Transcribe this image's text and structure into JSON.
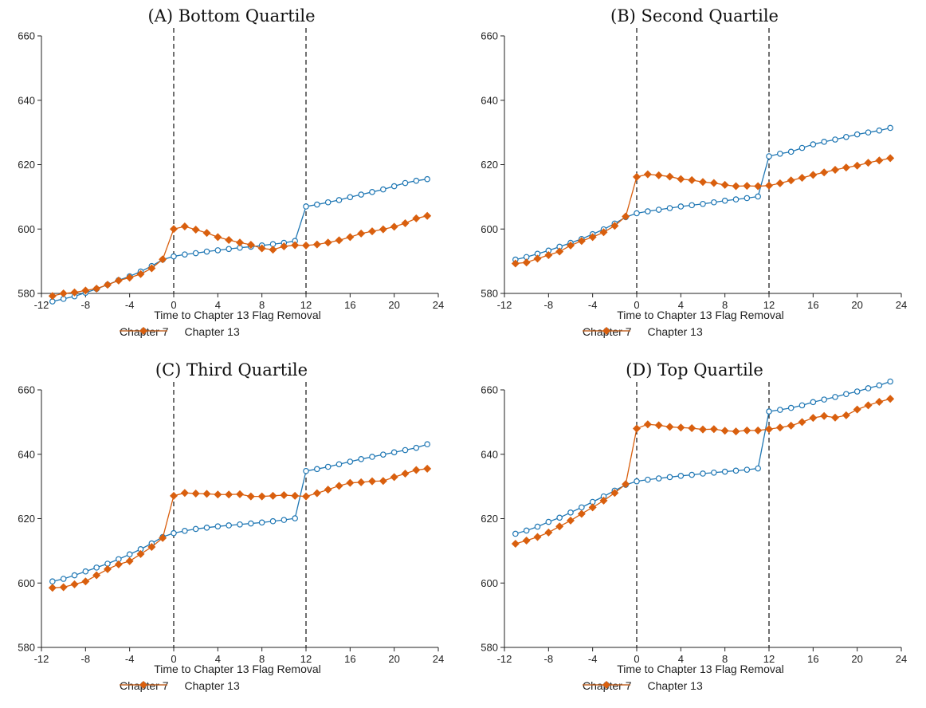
{
  "chart_data": [
    {
      "type": "line",
      "title": "(A) Bottom Quartile",
      "xlabel": "Time to Chapter 13 Flag Removal",
      "ylabel": "",
      "xlim": [
        -12,
        24
      ],
      "ylim": [
        580,
        660
      ],
      "xticks": [
        "-12",
        "-8",
        "-4",
        "0",
        "4",
        "8",
        "12",
        "16",
        "20",
        "24"
      ],
      "yticks": [
        "580",
        "600",
        "620",
        "640",
        "660"
      ],
      "vlines": [
        0,
        12
      ],
      "x": [
        -11,
        -10,
        -9,
        -8,
        -7,
        -6,
        -5,
        -4,
        -3,
        -2,
        -1,
        0,
        1,
        2,
        3,
        4,
        5,
        6,
        7,
        8,
        9,
        10,
        11,
        12,
        13,
        14,
        15,
        16,
        17,
        18,
        19,
        20,
        21,
        22,
        23
      ],
      "series": [
        {
          "name": "Chapter 7",
          "values": [
            577.5,
            578.3,
            579.1,
            580.2,
            581.4,
            582.7,
            584.1,
            585.3,
            586.8,
            588.5,
            590.5,
            591.5,
            592.1,
            592.5,
            593.0,
            593.4,
            593.8,
            594.2,
            594.5,
            594.9,
            595.3,
            595.7,
            596.3,
            607.0,
            607.6,
            608.3,
            609.0,
            609.9,
            610.7,
            611.5,
            612.3,
            613.3,
            614.3,
            615.0,
            615.5
          ]
        },
        {
          "name": "Chapter 13",
          "values": [
            579.2,
            580.0,
            580.3,
            580.9,
            581.5,
            582.7,
            584.0,
            584.9,
            586.0,
            587.8,
            590.6,
            600.0,
            600.8,
            599.8,
            598.8,
            597.5,
            596.6,
            595.8,
            595.1,
            594.0,
            593.6,
            594.6,
            595.0,
            594.9,
            595.2,
            595.8,
            596.5,
            597.5,
            598.6,
            599.3,
            599.9,
            600.7,
            601.8,
            603.3,
            604.1
          ]
        }
      ]
    },
    {
      "type": "line",
      "title": "(B) Second Quartile",
      "xlabel": "Time to Chapter 13 Flag Removal",
      "ylabel": "",
      "xlim": [
        -12,
        24
      ],
      "ylim": [
        580,
        660
      ],
      "xticks": [
        "-12",
        "-8",
        "-4",
        "0",
        "4",
        "8",
        "12",
        "16",
        "20",
        "24"
      ],
      "yticks": [
        "580",
        "600",
        "620",
        "640",
        "660"
      ],
      "vlines": [
        0,
        12
      ],
      "x": [
        -11,
        -10,
        -9,
        -8,
        -7,
        -6,
        -5,
        -4,
        -3,
        -2,
        -1,
        0,
        1,
        2,
        3,
        4,
        5,
        6,
        7,
        8,
        9,
        10,
        11,
        12,
        13,
        14,
        15,
        16,
        17,
        18,
        19,
        20,
        21,
        22,
        23
      ],
      "series": [
        {
          "name": "Chapter 7",
          "values": [
            590.5,
            591.3,
            592.3,
            593.3,
            594.5,
            595.7,
            596.9,
            598.4,
            599.9,
            601.7,
            603.7,
            604.9,
            605.5,
            606.0,
            606.5,
            607.0,
            607.4,
            607.8,
            608.3,
            608.8,
            609.2,
            609.6,
            610.1,
            622.6,
            623.4,
            624.0,
            625.2,
            626.3,
            627.1,
            627.8,
            628.6,
            629.4,
            630.0,
            630.6,
            631.4
          ]
        },
        {
          "name": "Chapter 13",
          "values": [
            589.3,
            589.6,
            590.8,
            591.9,
            593.0,
            594.9,
            596.3,
            597.5,
            599.0,
            601.0,
            603.9,
            616.2,
            617.0,
            616.7,
            616.3,
            615.5,
            615.2,
            614.6,
            614.3,
            613.7,
            613.3,
            613.4,
            613.3,
            613.5,
            614.2,
            615.1,
            615.9,
            616.8,
            617.6,
            618.4,
            619.1,
            619.7,
            620.6,
            621.3,
            622.0
          ]
        }
      ]
    },
    {
      "type": "line",
      "title": "(C) Third Quartile",
      "xlabel": "Time to Chapter 13 Flag Removal",
      "ylabel": "",
      "xlim": [
        -12,
        24
      ],
      "ylim": [
        580,
        660
      ],
      "xticks": [
        "-12",
        "-8",
        "-4",
        "0",
        "4",
        "8",
        "12",
        "16",
        "20",
        "24"
      ],
      "yticks": [
        "580",
        "600",
        "620",
        "640",
        "660"
      ],
      "vlines": [
        0,
        12
      ],
      "x": [
        -11,
        -10,
        -9,
        -8,
        -7,
        -6,
        -5,
        -4,
        -3,
        -2,
        -1,
        0,
        1,
        2,
        3,
        4,
        5,
        6,
        7,
        8,
        9,
        10,
        11,
        12,
        13,
        14,
        15,
        16,
        17,
        18,
        19,
        20,
        21,
        22,
        23
      ],
      "series": [
        {
          "name": "Chapter 7",
          "values": [
            600.5,
            601.3,
            602.4,
            603.6,
            604.8,
            606.0,
            607.4,
            608.9,
            610.5,
            612.3,
            614.3,
            615.5,
            616.2,
            616.8,
            617.2,
            617.6,
            617.9,
            618.2,
            618.5,
            618.8,
            619.2,
            619.6,
            620.1,
            634.8,
            635.4,
            636.1,
            636.9,
            637.7,
            638.5,
            639.2,
            639.9,
            640.6,
            641.3,
            642.0,
            643.1
          ]
        },
        {
          "name": "Chapter 13",
          "values": [
            598.5,
            598.7,
            599.6,
            600.5,
            602.4,
            604.3,
            605.8,
            606.8,
            609.0,
            611.2,
            614.0,
            627.1,
            628.0,
            627.8,
            627.7,
            627.5,
            627.5,
            627.6,
            626.9,
            626.9,
            627.1,
            627.3,
            627.1,
            626.9,
            627.9,
            629.0,
            630.2,
            631.1,
            631.3,
            631.6,
            631.7,
            632.9,
            634.0,
            635.1,
            635.5
          ]
        }
      ]
    },
    {
      "type": "line",
      "title": "(D) Top Quartile",
      "xlabel": "Time to Chapter 13 Flag Removal",
      "ylabel": "",
      "xlim": [
        -12,
        24
      ],
      "ylim": [
        580,
        660
      ],
      "xticks": [
        "-12",
        "-8",
        "-4",
        "0",
        "4",
        "8",
        "12",
        "16",
        "20",
        "24"
      ],
      "yticks": [
        "580",
        "600",
        "620",
        "640",
        "660"
      ],
      "vlines": [
        0,
        12
      ],
      "x": [
        -11,
        -10,
        -9,
        -8,
        -7,
        -6,
        -5,
        -4,
        -3,
        -2,
        -1,
        0,
        1,
        2,
        3,
        4,
        5,
        6,
        7,
        8,
        9,
        10,
        11,
        12,
        13,
        14,
        15,
        16,
        17,
        18,
        19,
        20,
        21,
        22,
        23
      ],
      "series": [
        {
          "name": "Chapter 7",
          "values": [
            615.3,
            616.3,
            617.5,
            619.0,
            620.3,
            621.9,
            623.5,
            625.2,
            626.9,
            628.7,
            630.5,
            631.6,
            632.1,
            632.5,
            632.9,
            633.3,
            633.6,
            634.0,
            634.3,
            634.6,
            634.9,
            635.2,
            635.6,
            653.3,
            653.8,
            654.4,
            655.2,
            656.2,
            657.0,
            657.8,
            658.7,
            659.5,
            660.5,
            661.4,
            662.6
          ]
        },
        {
          "name": "Chapter 13",
          "values": [
            612.2,
            613.2,
            614.3,
            615.7,
            617.6,
            619.4,
            621.5,
            623.5,
            625.6,
            628.0,
            630.7,
            648.0,
            649.3,
            649.0,
            648.5,
            648.3,
            648.1,
            647.7,
            647.8,
            647.3,
            647.1,
            647.4,
            647.4,
            647.8,
            648.3,
            648.9,
            650.0,
            651.3,
            651.9,
            651.4,
            652.1,
            653.9,
            655.2,
            656.3,
            657.2
          ]
        }
      ]
    }
  ],
  "legend": {
    "chapter7": "Chapter 7",
    "chapter13": "Chapter 13"
  },
  "colors": {
    "chapter7": "#1f77b4",
    "chapter13": "#d95f0e"
  }
}
